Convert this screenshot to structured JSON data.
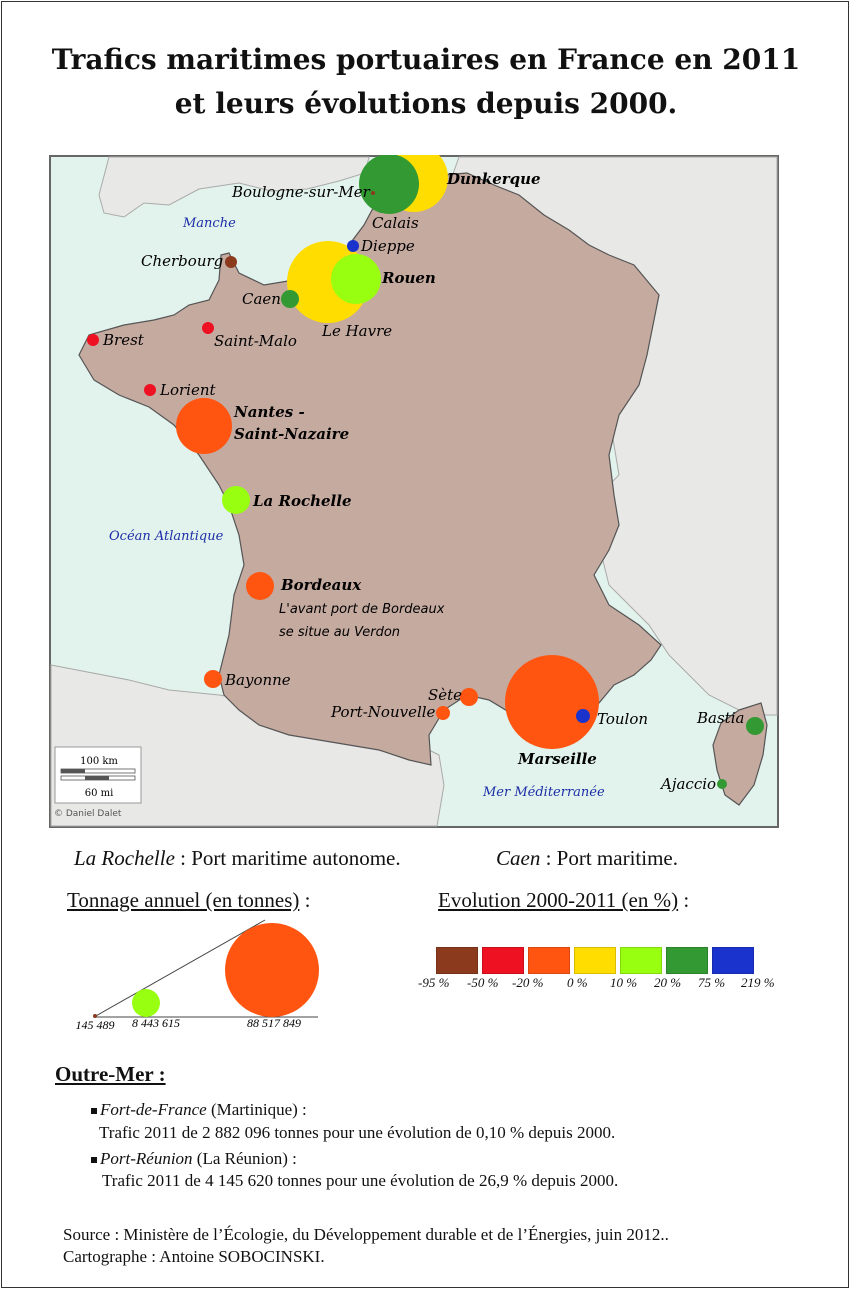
{
  "title": {
    "line1": "Trafics maritimes portuaires en France en 2011",
    "line2": "et leurs évolutions depuis 2000."
  },
  "map": {
    "seas": {
      "manche": "Manche",
      "atlantique": "Océan Atlantique",
      "mediterranee": "Mer Méditerranée"
    },
    "scale": {
      "km": "100 km",
      "mi": "60 mi"
    },
    "credit": "© Daniel Dalet",
    "bordeaux_note": [
      "L'avant port de Bordeaux",
      "se situe au Verdon"
    ],
    "ports": [
      {
        "id": "dunkerque",
        "name": "Dunkerque",
        "autonome": true,
        "class": "0 %",
        "color": "#ffdd00"
      },
      {
        "id": "calais",
        "name": "Calais",
        "autonome": false,
        "class": "20 %",
        "color": "#339933"
      },
      {
        "id": "boulogne",
        "name": "Boulogne-sur-Mer",
        "autonome": false,
        "class": "-95 %",
        "color": "#8b3a1e"
      },
      {
        "id": "dieppe",
        "name": "Dieppe",
        "autonome": false,
        "class": "75 %",
        "color": "#1a33cc"
      },
      {
        "id": "rouen",
        "name": "Rouen",
        "autonome": true,
        "class": "10 %",
        "color": "#99ff11"
      },
      {
        "id": "lehavre",
        "name": "Le Havre",
        "autonome": false,
        "class": "0 %",
        "color": "#ffdd00"
      },
      {
        "id": "caen",
        "name": "Caen",
        "autonome": false,
        "class": "20 %",
        "color": "#339933"
      },
      {
        "id": "cherbourg",
        "name": "Cherbourg",
        "autonome": false,
        "class": "-95 %",
        "color": "#8b3a1e"
      },
      {
        "id": "saintmalo",
        "name": "Saint-Malo",
        "autonome": false,
        "class": "-50 %",
        "color": "#ee1122"
      },
      {
        "id": "brest",
        "name": "Brest",
        "autonome": false,
        "class": "-50 %",
        "color": "#ee1122"
      },
      {
        "id": "lorient",
        "name": "Lorient",
        "autonome": false,
        "class": "-50 %",
        "color": "#ee1122"
      },
      {
        "id": "nantes",
        "name": "Nantes -\nSaint-Nazaire",
        "autonome": true,
        "class": "-20 %",
        "color": "#ff5511"
      },
      {
        "id": "larochelle",
        "name": "La Rochelle",
        "autonome": true,
        "class": "10 %",
        "color": "#99ff11"
      },
      {
        "id": "bordeaux",
        "name": "Bordeaux",
        "autonome": true,
        "class": "-20 %",
        "color": "#ff5511"
      },
      {
        "id": "bayonne",
        "name": "Bayonne",
        "autonome": false,
        "class": "-20 %",
        "color": "#ff5511"
      },
      {
        "id": "sete",
        "name": "Sète",
        "autonome": false,
        "class": "-20 %",
        "color": "#ff5511"
      },
      {
        "id": "portnouvelle",
        "name": "Port-Nouvelle",
        "autonome": false,
        "class": "-20 %",
        "color": "#ff5511"
      },
      {
        "id": "marseille",
        "name": "Marseille",
        "autonome": true,
        "class": "-20 %",
        "color": "#ff5511"
      },
      {
        "id": "toulon",
        "name": "Toulon",
        "autonome": false,
        "class": "219 %",
        "color": "#1a33cc"
      },
      {
        "id": "bastia",
        "name": "Bastia",
        "autonome": false,
        "class": "20 %",
        "color": "#339933"
      },
      {
        "id": "ajaccio",
        "name": "Ajaccio",
        "autonome": false,
        "class": "20 %",
        "color": "#339933"
      }
    ]
  },
  "legend": {
    "autonome_example": "La Rochelle",
    "autonome_text": " : Port maritime autonome.",
    "maritime_example": "Caen",
    "maritime_text": " : Port maritime.",
    "tonnage_title": "Tonnage annuel (en tonnes)",
    "tonnage_colon": " :",
    "tonnage_values": [
      "145 489",
      "8 443 615",
      "88 517 849"
    ],
    "evolution_title": "Evolution 2000-2011 (en %)",
    "evolution_colon": " :",
    "evolution_classes": [
      {
        "label": "-95 %",
        "color": "#8b3a1e"
      },
      {
        "label": "-50 %",
        "color": "#ee1122"
      },
      {
        "label": "-20 %",
        "color": "#ff5511"
      },
      {
        "label": "0 %",
        "color": "#ffdd00"
      },
      {
        "label": "10 %",
        "color": "#99ff11"
      },
      {
        "label": "20 %",
        "color": "#339933"
      },
      {
        "label": "75 %",
        "color": "#1a33cc"
      },
      {
        "label": "219 %",
        "color": ""
      }
    ]
  },
  "outre_mer": {
    "title": "Outre-Mer :",
    "items": [
      {
        "port": "Fort-de-France",
        "region": " (Martinique) :",
        "text": "Trafic 2011 de 2 882 096 tonnes pour une évolution de 0,10 % depuis 2000."
      },
      {
        "port": "Port-Réunion",
        "region": " (La Réunion) :",
        "text": "Trafic 2011 de 4 145  620  tonnes pour une évolution de 26,9 % depuis 2000."
      }
    ]
  },
  "source": {
    "line1": "Source : Ministère de l’Écologie, du Développement durable et de l’Énergies, juin 2012..",
    "line2": "Cartographe : Antoine SOBOCINSKI."
  }
}
